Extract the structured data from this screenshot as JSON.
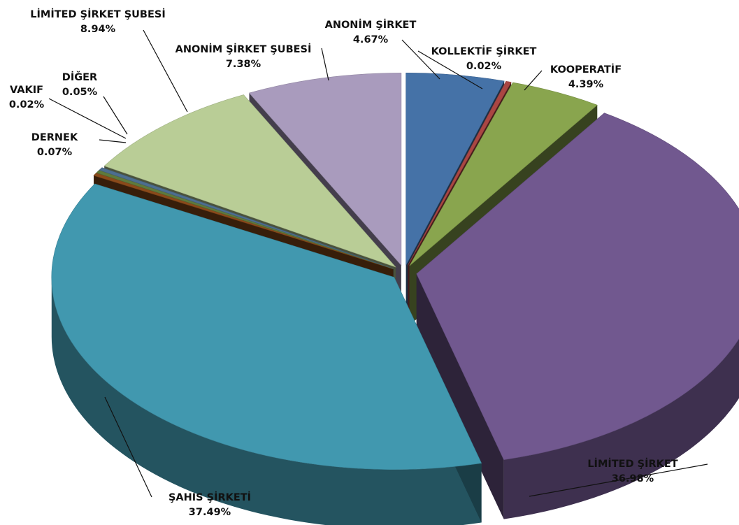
{
  "chart_data": {
    "type": "pie",
    "style": "3d-exploded",
    "legend": "none",
    "slices": [
      {
        "name": "ANONİM ŞİRKET",
        "value": 4.67,
        "label_value": "4.67%",
        "color": "#4572A7"
      },
      {
        "name": "KOLLEKTİF ŞİRKET",
        "value": 0.02,
        "label_value": "0.02%",
        "color": "#AA4643"
      },
      {
        "name": "KOOPERATİF",
        "value": 4.39,
        "label_value": "4.39%",
        "color": "#89A54E"
      },
      {
        "name": "LİMİTED ŞİRKET",
        "value": 36.98,
        "label_value": "36.98%",
        "color": "#71588F"
      },
      {
        "name": "ŞAHIS ŞİRKETİ",
        "value": 37.49,
        "label_value": "37.49%",
        "color": "#4198AF"
      },
      {
        "name": "DERNEK",
        "value": 0.07,
        "label_value": "0.07%",
        "color": "#8A4A1A"
      },
      {
        "name": "VAKIF",
        "value": 0.02,
        "label_value": "0.02%",
        "color": "#5F7A3C"
      },
      {
        "name": "DİĞER",
        "value": 0.05,
        "label_value": "0.05%",
        "color": "#4D6E90"
      },
      {
        "name": "LİMİTED ŞİRKET ŞUBESİ",
        "value": 8.94,
        "label_value": "8.94%",
        "color": "#B9CD96"
      },
      {
        "name": "ANONİM ŞİRKET ŞUBESİ",
        "value": 7.38,
        "label_value": "7.38%",
        "color": "#A99BBD"
      }
    ]
  }
}
